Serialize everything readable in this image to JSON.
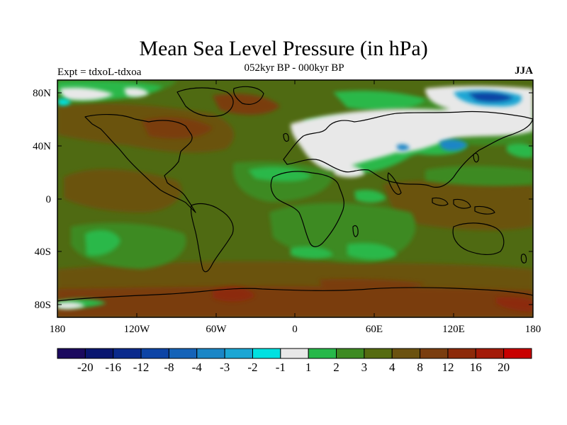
{
  "title": "Mean Sea Level Pressure (in hPa)",
  "subtitle": "052kyr BP - 000kyr BP",
  "expt_label": "Expt = tdxoL-tdxoa",
  "season": "JJA",
  "lat_ticks": [
    "80N",
    "40N",
    "0",
    "40S",
    "80S"
  ],
  "lon_ticks": [
    "180",
    "120W",
    "60W",
    "0",
    "60E",
    "120E",
    "180"
  ],
  "colorbar": {
    "colors": [
      "#1b0a5e",
      "#0a1670",
      "#0b2a8c",
      "#0d44a6",
      "#1563b8",
      "#1a86c6",
      "#1ba6d4",
      "#00e0e0",
      "#e8e8e8",
      "#27b84a",
      "#3d8a22",
      "#556b10",
      "#6b5210",
      "#7a3d0f",
      "#8c2a0a",
      "#a31a08",
      "#c80000"
    ],
    "labels": [
      "-20",
      "-16",
      "-12",
      "-8",
      "-4",
      "-3",
      "-2",
      "-1",
      "1",
      "2",
      "3",
      "4",
      "8",
      "12",
      "16",
      "20"
    ]
  },
  "map_colors": {
    "base": "#4f6a12",
    "brown": "#7a4a0f",
    "red_brown": "#8c2a0a",
    "green": "#2ab84a",
    "mid_green": "#3d8a22",
    "white": "#e8e8e8",
    "blue": "#1a86c6",
    "dark_blue": "#0d44a6",
    "cyan": "#00e0e0"
  }
}
